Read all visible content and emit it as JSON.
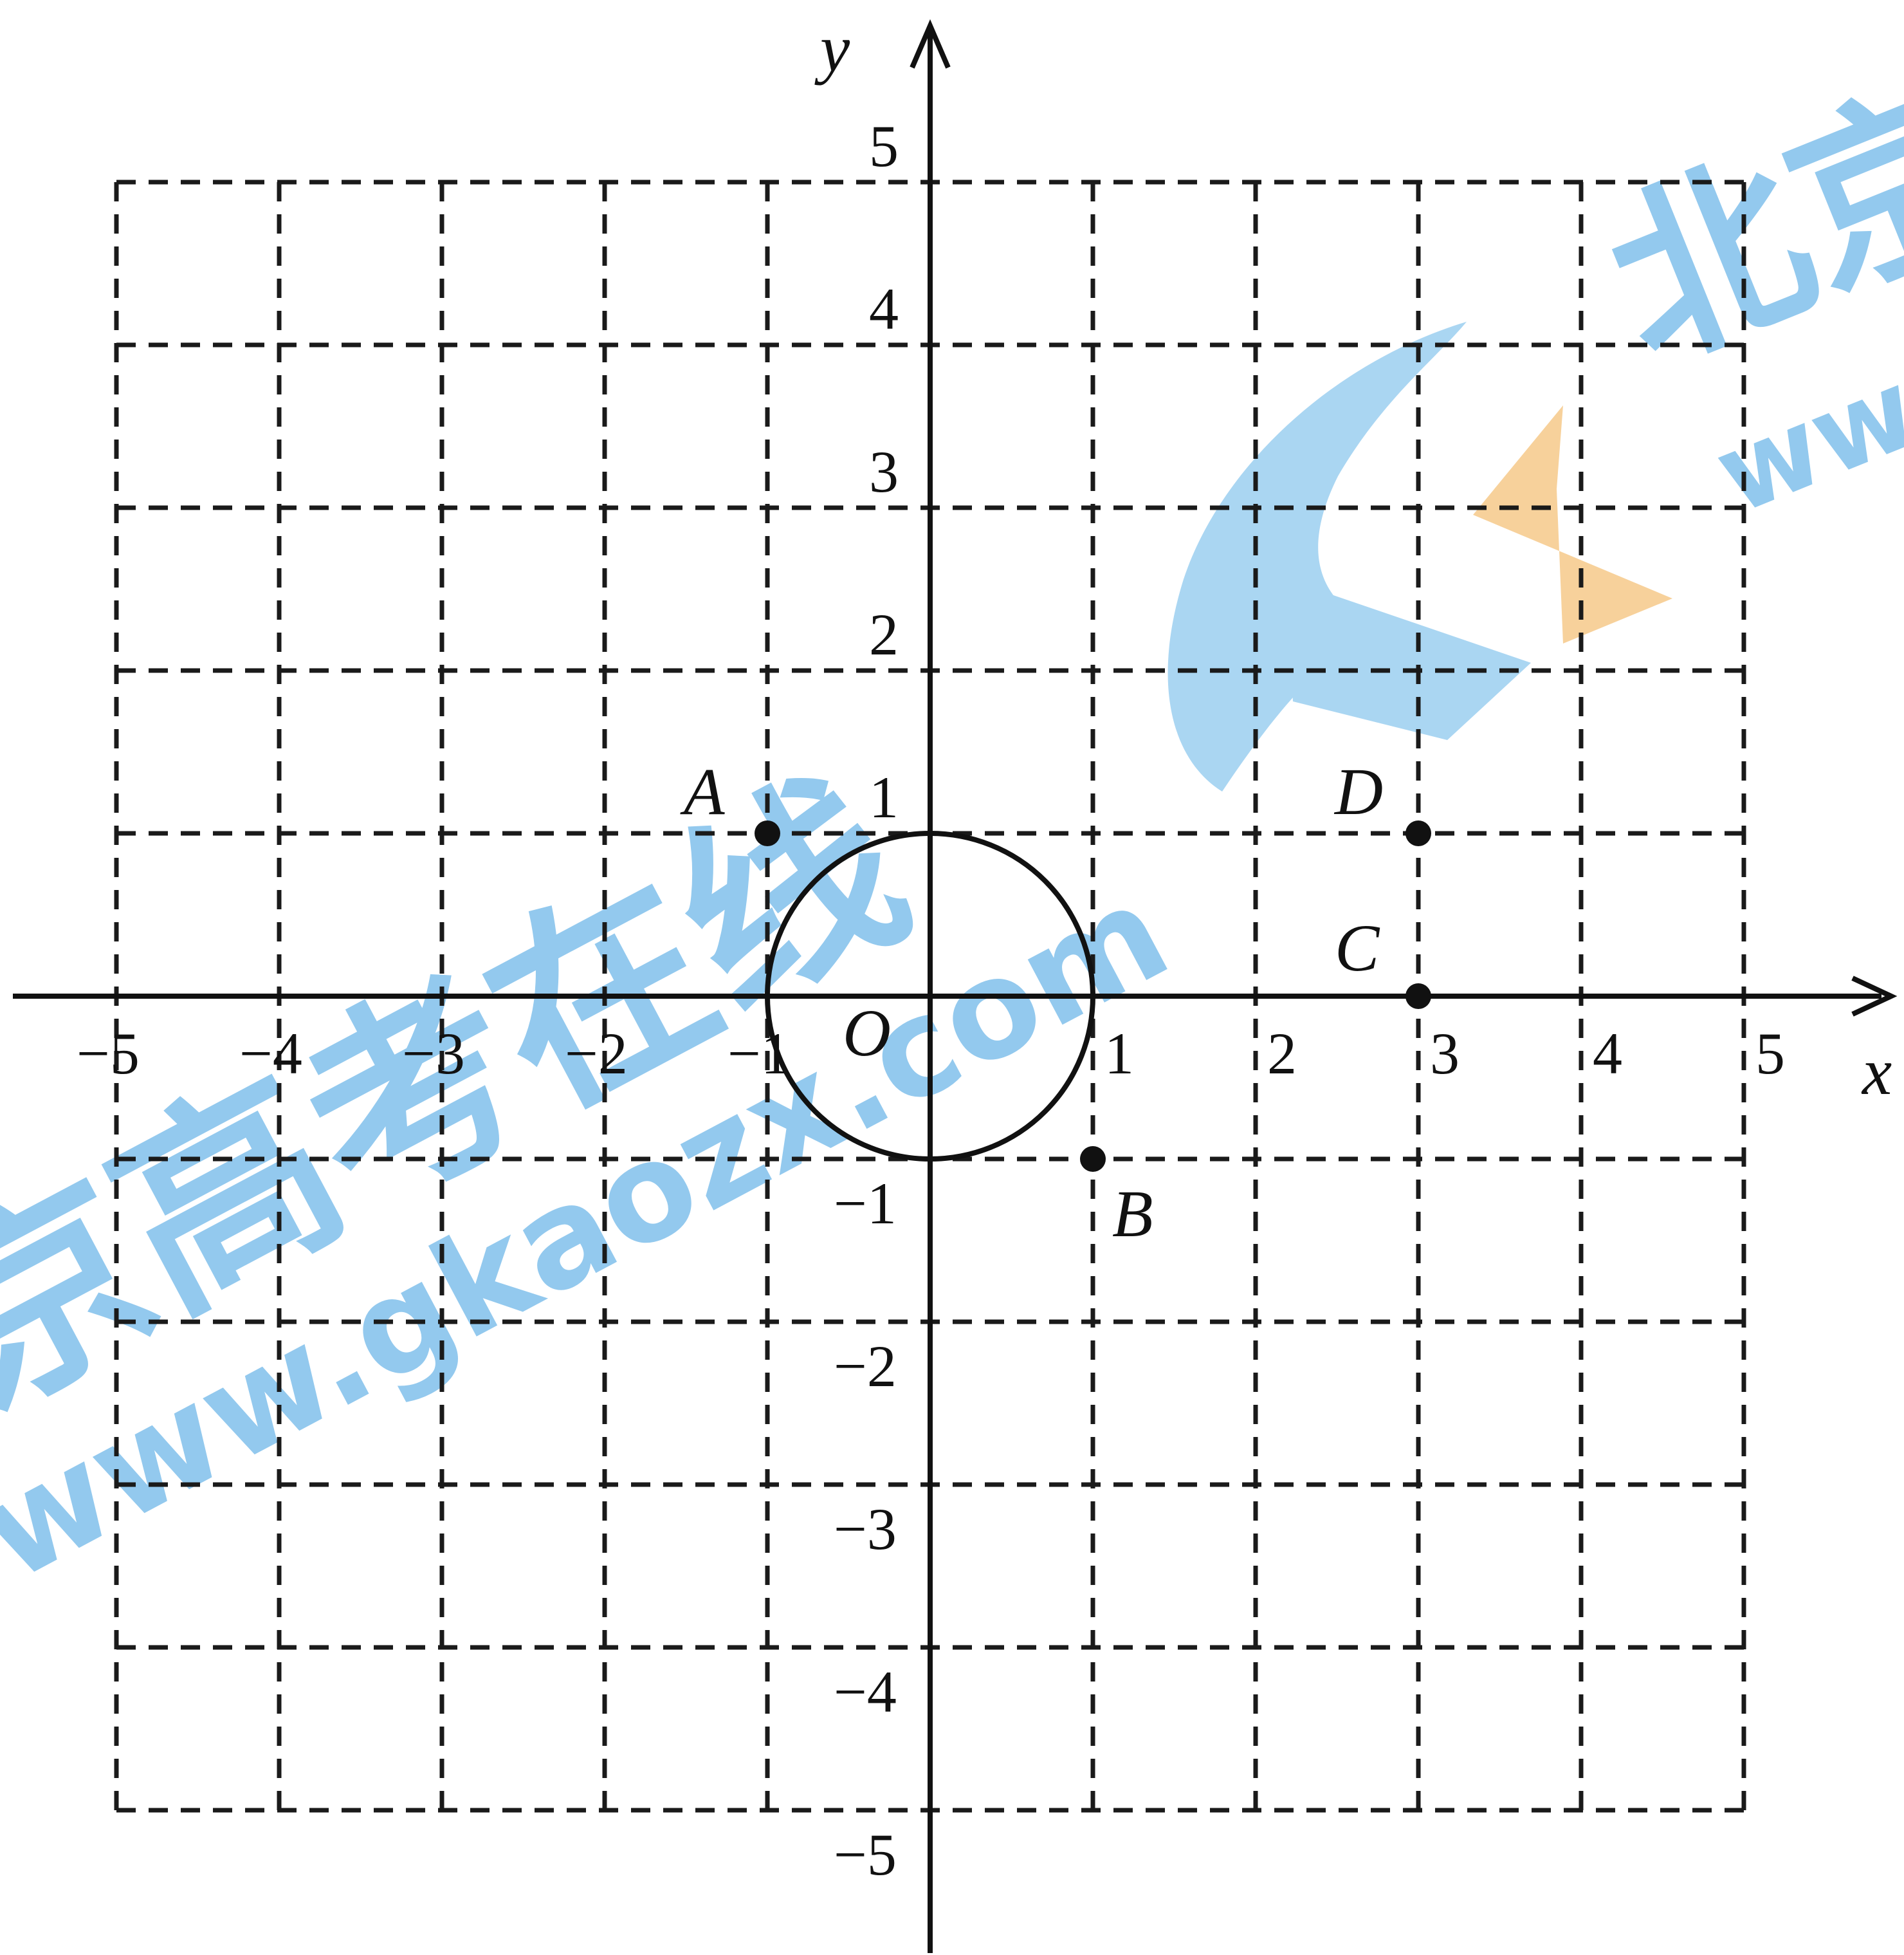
{
  "diagram": {
    "axis_x_label": "x",
    "axis_y_label": "y",
    "origin_label": "O",
    "x_ticks": [
      {
        "value": -5,
        "label": "−5"
      },
      {
        "value": -4,
        "label": "−4"
      },
      {
        "value": -3,
        "label": "−3"
      },
      {
        "value": -2,
        "label": "−2"
      },
      {
        "value": -1,
        "label": "−1"
      },
      {
        "value": 1,
        "label": "1"
      },
      {
        "value": 2,
        "label": "2"
      },
      {
        "value": 3,
        "label": "3"
      },
      {
        "value": 4,
        "label": "4"
      },
      {
        "value": 5,
        "label": "5"
      }
    ],
    "y_ticks": [
      {
        "value": 5,
        "label": "5"
      },
      {
        "value": 4,
        "label": "4"
      },
      {
        "value": 3,
        "label": "3"
      },
      {
        "value": 2,
        "label": "2"
      },
      {
        "value": 1,
        "label": "1"
      },
      {
        "value": -1,
        "label": "−1"
      },
      {
        "value": -2,
        "label": "−2"
      },
      {
        "value": -3,
        "label": "−3"
      },
      {
        "value": -4,
        "label": "−4"
      },
      {
        "value": -5,
        "label": "−5"
      }
    ],
    "grid_range": [
      -5,
      5
    ],
    "circle": {
      "center": [
        0,
        0
      ],
      "radius": 1
    },
    "points": [
      {
        "name": "A",
        "x": -1,
        "y": 1
      },
      {
        "name": "B",
        "x": 1,
        "y": -1
      },
      {
        "name": "C",
        "x": 3,
        "y": 0
      },
      {
        "name": "D",
        "x": 3,
        "y": 1
      }
    ],
    "line_color": "#111111",
    "grid_color": "#1a1a1a"
  },
  "watermark": {
    "text_cn_bottom": "京高考在线",
    "url_bottom": "www.gkaozx.com",
    "text_cn_top": "北京",
    "url_top": "ww",
    "blue": "#6fb7e8",
    "orange": "#f5c27a"
  }
}
